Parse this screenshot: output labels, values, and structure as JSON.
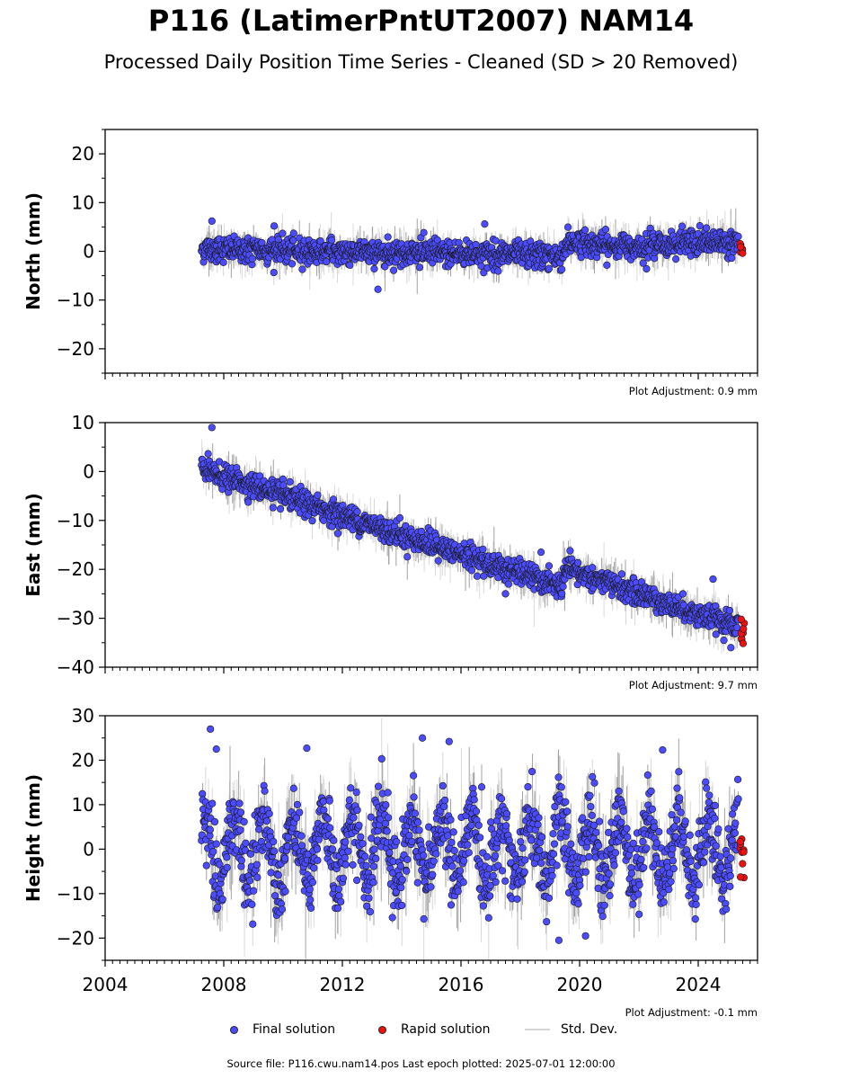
{
  "title": "P116 (LatimerPntUT2007) NAM14",
  "subtitle": "Processed Daily Position Time Series - Cleaned (SD > 20 Removed)",
  "footer": "Source file: P116.cwu.nam14.pos  Last epoch plotted: 2025-07-01 12:00:00",
  "legend": {
    "final": "Final solution",
    "rapid": "Rapid solution",
    "std": "Std. Dev."
  },
  "colors": {
    "final": "#4b4bff",
    "rapid": "#ee1111",
    "std": "#c8c8c8",
    "outline": "#1a1a1a"
  },
  "chart_data": [
    {
      "type": "scatter",
      "ylabel": "North (mm)",
      "xlabel": "",
      "xlim": [
        2004,
        2026
      ],
      "ylim": [
        -25,
        25
      ],
      "yticks": [
        -20,
        -10,
        0,
        10,
        20
      ],
      "xticks": [
        2004,
        2008,
        2012,
        2016,
        2020,
        2024
      ],
      "show_xtick_labels": false,
      "annotation": "Plot Adjustment: 0.9 mm",
      "series": [
        {
          "name": "Final solution",
          "start": 2007.25,
          "end": 2025.35,
          "trend": [
            [
              2007.25,
              0.5
            ],
            [
              2011.0,
              0.0
            ],
            [
              2015.0,
              -0.3
            ],
            [
              2019.4,
              -1.0
            ],
            [
              2019.6,
              2.0
            ],
            [
              2021.0,
              1.0
            ],
            [
              2025.35,
              2.0
            ]
          ],
          "scatter_sd": 1.3,
          "err_sd": 1.8,
          "outliers": [
            [
              2007.6,
              6.2
            ],
            [
              2009.7,
              5.2
            ],
            [
              2016.8,
              5.6
            ],
            [
              2013.2,
              -7.8
            ]
          ]
        },
        {
          "name": "Rapid solution",
          "start": 2025.4,
          "end": 2025.55,
          "count": 8,
          "level": 1.0,
          "scatter_sd": 0.8
        }
      ]
    },
    {
      "type": "scatter",
      "ylabel": "East (mm)",
      "xlabel": "",
      "xlim": [
        2004,
        2026
      ],
      "ylim": [
        -40,
        10
      ],
      "yticks": [
        -40,
        -30,
        -20,
        -10,
        0,
        10
      ],
      "xticks": [
        2004,
        2008,
        2012,
        2016,
        2020,
        2024
      ],
      "show_xtick_labels": false,
      "annotation": "Plot Adjustment: 9.7 mm",
      "series": [
        {
          "name": "Final solution",
          "start": 2007.25,
          "end": 2025.35,
          "trend": [
            [
              2007.25,
              0.5
            ],
            [
              2012.0,
              -9.0
            ],
            [
              2016.0,
              -17.0
            ],
            [
              2019.4,
              -23.5
            ],
            [
              2019.6,
              -20.0
            ],
            [
              2025.35,
              -32.0
            ]
          ],
          "scatter_sd": 1.2,
          "err_sd": 2.0,
          "outliers": [
            [
              2007.6,
              9.0
            ],
            [
              2018.7,
              -16.5
            ],
            [
              2024.5,
              -22.0
            ],
            [
              2025.1,
              -36.0
            ],
            [
              2017.5,
              -25.0
            ]
          ]
        },
        {
          "name": "Rapid solution",
          "start": 2025.4,
          "end": 2025.55,
          "count": 8,
          "level": -32.5,
          "scatter_sd": 1.3
        }
      ]
    },
    {
      "type": "scatter",
      "ylabel": "Height (mm)",
      "xlabel": "",
      "xlim": [
        2004,
        2026
      ],
      "ylim": [
        -25,
        30
      ],
      "yticks": [
        -20,
        -10,
        0,
        10,
        20,
        30
      ],
      "xticks": [
        2004,
        2008,
        2012,
        2016,
        2020,
        2024
      ],
      "xtick_labels": [
        "2004",
        "2008",
        "2012",
        "2016",
        "2020",
        "2024"
      ],
      "show_xtick_labels": true,
      "annotation": "Plot Adjustment: -0.1 mm",
      "series": [
        {
          "name": "Final solution",
          "start": 2007.25,
          "end": 2025.35,
          "trend": [
            [
              2007.25,
              0.0
            ],
            [
              2025.35,
              0.0
            ]
          ],
          "seasonal_amp": 7.0,
          "scatter_sd": 4.2,
          "err_sd": 5.0,
          "outliers": [
            [
              2007.55,
              27.0
            ],
            [
              2007.75,
              22.5
            ],
            [
              2015.6,
              24.2
            ],
            [
              2014.7,
              25.0
            ],
            [
              2019.3,
              -20.5
            ],
            [
              2020.2,
              -19.5
            ],
            [
              2022.8,
              22.3
            ],
            [
              2010.8,
              22.7
            ]
          ]
        },
        {
          "name": "Rapid solution",
          "start": 2025.4,
          "end": 2025.55,
          "count": 10,
          "level": -3.0,
          "scatter_sd": 3.0
        }
      ]
    }
  ]
}
